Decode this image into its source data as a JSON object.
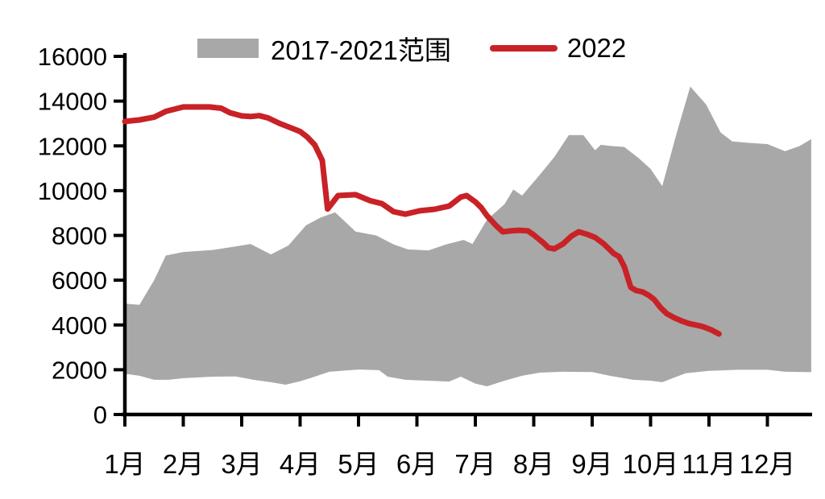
{
  "chart_data": {
    "type": "area",
    "subtype": "range-band-with-line",
    "x_unit": "month (1 = Jan 1 ... 12 = Dec 1, fractional values are positions within the year)",
    "x_axis": {
      "categories": [
        "1月",
        "2月",
        "3月",
        "4月",
        "5月",
        "6月",
        "7月",
        "8月",
        "9月",
        "10月",
        "11月",
        "12月"
      ],
      "range": [
        1,
        12.76
      ]
    },
    "y_axis": {
      "ticks": [
        0,
        2000,
        4000,
        6000,
        8000,
        10000,
        12000,
        14000,
        16000
      ],
      "min": 0,
      "max": 16000
    },
    "legend": [
      {
        "label": "2017-2021范围",
        "type": "area",
        "color": "#a8a8a8"
      },
      {
        "label": "2022",
        "type": "line",
        "color": "#c82227"
      }
    ],
    "colors": {
      "band": "#a8a8a8",
      "line": "#c82227",
      "axis": "#000000",
      "text": "#000000"
    },
    "series": {
      "range_2017_2021": {
        "name": "2017-2021范围",
        "upper": [
          [
            1.0,
            4950
          ],
          [
            1.25,
            4900
          ],
          [
            1.5,
            6000
          ],
          [
            1.7,
            7100
          ],
          [
            2.0,
            7260
          ],
          [
            2.5,
            7350
          ],
          [
            3.0,
            7550
          ],
          [
            3.15,
            7620
          ],
          [
            3.5,
            7150
          ],
          [
            3.8,
            7550
          ],
          [
            4.1,
            8450
          ],
          [
            4.35,
            8800
          ],
          [
            4.6,
            9030
          ],
          [
            4.95,
            8170
          ],
          [
            5.3,
            8000
          ],
          [
            5.6,
            7600
          ],
          [
            5.85,
            7370
          ],
          [
            6.2,
            7330
          ],
          [
            6.5,
            7600
          ],
          [
            6.8,
            7800
          ],
          [
            6.95,
            7620
          ],
          [
            7.2,
            8700
          ],
          [
            7.5,
            9400
          ],
          [
            7.65,
            10050
          ],
          [
            7.8,
            9780
          ],
          [
            8.1,
            10700
          ],
          [
            8.35,
            11500
          ],
          [
            8.6,
            12480
          ],
          [
            8.85,
            12480
          ],
          [
            9.05,
            11800
          ],
          [
            9.15,
            12050
          ],
          [
            9.3,
            12000
          ],
          [
            9.55,
            11950
          ],
          [
            9.8,
            11440
          ],
          [
            10.0,
            10970
          ],
          [
            10.2,
            10200
          ],
          [
            10.45,
            12600
          ],
          [
            10.68,
            14650
          ],
          [
            10.95,
            13850
          ],
          [
            11.2,
            12590
          ],
          [
            11.4,
            12200
          ],
          [
            11.7,
            12130
          ],
          [
            12.0,
            12080
          ],
          [
            12.3,
            11760
          ],
          [
            12.55,
            11990
          ],
          [
            12.75,
            12300
          ]
        ],
        "lower": [
          [
            1.0,
            1820
          ],
          [
            1.25,
            1730
          ],
          [
            1.5,
            1550
          ],
          [
            1.75,
            1550
          ],
          [
            2.0,
            1620
          ],
          [
            2.5,
            1690
          ],
          [
            2.9,
            1700
          ],
          [
            3.2,
            1550
          ],
          [
            3.5,
            1440
          ],
          [
            3.75,
            1330
          ],
          [
            4.0,
            1480
          ],
          [
            4.25,
            1690
          ],
          [
            4.5,
            1910
          ],
          [
            5.0,
            2010
          ],
          [
            5.35,
            1980
          ],
          [
            5.5,
            1690
          ],
          [
            5.8,
            1550
          ],
          [
            6.2,
            1510
          ],
          [
            6.55,
            1470
          ],
          [
            6.75,
            1690
          ],
          [
            7.0,
            1380
          ],
          [
            7.2,
            1260
          ],
          [
            7.5,
            1510
          ],
          [
            7.8,
            1730
          ],
          [
            8.1,
            1870
          ],
          [
            8.5,
            1910
          ],
          [
            9.0,
            1900
          ],
          [
            9.3,
            1730
          ],
          [
            9.7,
            1550
          ],
          [
            10.0,
            1510
          ],
          [
            10.2,
            1440
          ],
          [
            10.6,
            1840
          ],
          [
            11.0,
            1950
          ],
          [
            11.5,
            2000
          ],
          [
            12.0,
            2000
          ],
          [
            12.3,
            1910
          ],
          [
            12.75,
            1890
          ]
        ]
      },
      "line_2022": {
        "name": "2022",
        "points": [
          [
            1.0,
            13090
          ],
          [
            1.25,
            13160
          ],
          [
            1.5,
            13280
          ],
          [
            1.7,
            13540
          ],
          [
            2.0,
            13740
          ],
          [
            2.45,
            13740
          ],
          [
            2.65,
            13680
          ],
          [
            2.8,
            13480
          ],
          [
            3.0,
            13340
          ],
          [
            3.15,
            13310
          ],
          [
            3.3,
            13350
          ],
          [
            3.45,
            13250
          ],
          [
            3.65,
            13000
          ],
          [
            3.8,
            12850
          ],
          [
            4.0,
            12640
          ],
          [
            4.12,
            12400
          ],
          [
            4.25,
            12050
          ],
          [
            4.38,
            11350
          ],
          [
            4.47,
            9180
          ],
          [
            4.65,
            9780
          ],
          [
            4.95,
            9820
          ],
          [
            5.2,
            9550
          ],
          [
            5.4,
            9420
          ],
          [
            5.6,
            9060
          ],
          [
            5.8,
            8950
          ],
          [
            6.05,
            9100
          ],
          [
            6.3,
            9170
          ],
          [
            6.55,
            9310
          ],
          [
            6.75,
            9710
          ],
          [
            6.85,
            9780
          ],
          [
            7.0,
            9500
          ],
          [
            7.1,
            9240
          ],
          [
            7.2,
            8880
          ],
          [
            7.35,
            8450
          ],
          [
            7.47,
            8160
          ],
          [
            7.6,
            8200
          ],
          [
            7.75,
            8230
          ],
          [
            7.9,
            8200
          ],
          [
            8.0,
            8020
          ],
          [
            8.15,
            7700
          ],
          [
            8.25,
            7450
          ],
          [
            8.35,
            7400
          ],
          [
            8.5,
            7620
          ],
          [
            8.65,
            7980
          ],
          [
            8.77,
            8160
          ],
          [
            8.9,
            8060
          ],
          [
            9.05,
            7910
          ],
          [
            9.2,
            7620
          ],
          [
            9.37,
            7190
          ],
          [
            9.46,
            7050
          ],
          [
            9.55,
            6600
          ],
          [
            9.66,
            5680
          ],
          [
            9.75,
            5540
          ],
          [
            9.87,
            5470
          ],
          [
            9.97,
            5320
          ],
          [
            10.06,
            5140
          ],
          [
            10.17,
            4780
          ],
          [
            10.28,
            4500
          ],
          [
            10.41,
            4320
          ],
          [
            10.54,
            4170
          ],
          [
            10.66,
            4060
          ],
          [
            10.79,
            3990
          ],
          [
            10.9,
            3920
          ],
          [
            11.04,
            3780
          ],
          [
            11.17,
            3600
          ]
        ]
      }
    }
  }
}
